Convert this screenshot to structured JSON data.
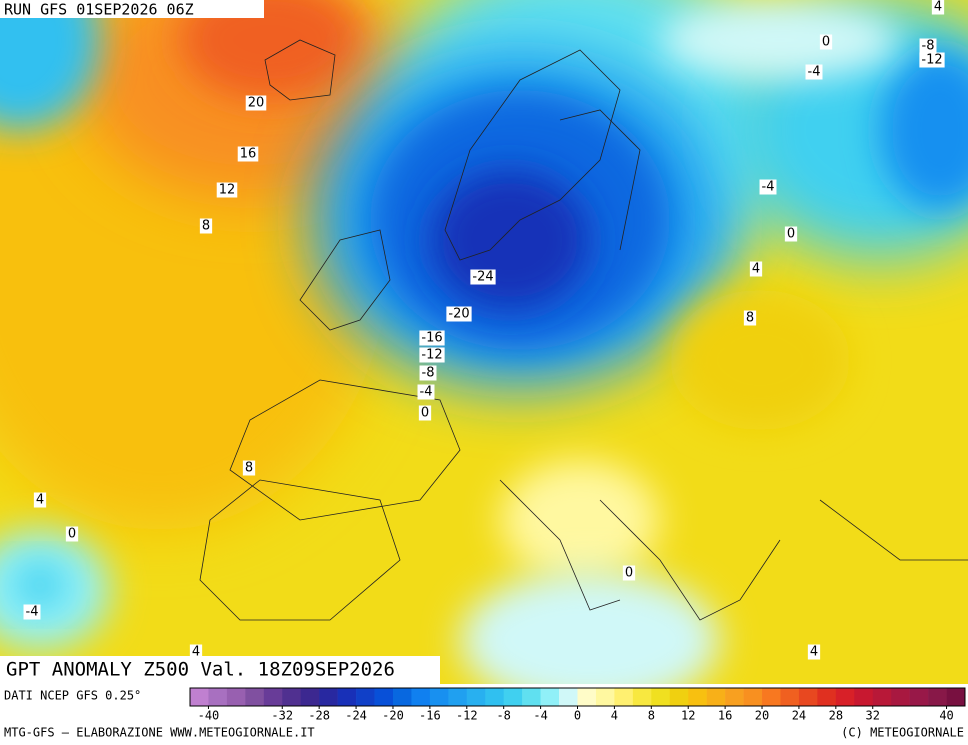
{
  "header": {
    "run": "RUN GFS 01SEP2026 06Z"
  },
  "title": "GPT ANOMALY Z500 Val. 18Z09SEP2026",
  "source": "DATI NCEP GFS 0.25°",
  "footer_left": "MTG-GFS — ELABORAZIONE WWW.METEOGIORNALE.IT",
  "footer_right": "(C) METEOGIORNALE",
  "colorbar": {
    "range": [
      -42,
      42
    ],
    "ticks": [
      -40,
      -32,
      -28,
      -24,
      -20,
      -16,
      -12,
      -8,
      -4,
      0,
      4,
      8,
      12,
      16,
      20,
      24,
      28,
      32,
      40
    ],
    "colors": [
      "#c080d0",
      "#a870c0",
      "#9860b0",
      "#8050a0",
      "#683c98",
      "#503090",
      "#3c2890",
      "#2828a0",
      "#1830b8",
      "#1040c8",
      "#0850d8",
      "#0868e0",
      "#1080f0",
      "#1890f0",
      "#20a0f0",
      "#28b0f0",
      "#30c0f0",
      "#40d0f0",
      "#60e0f0",
      "#90f0f8",
      "#d0f8f8",
      "#fffcc8",
      "#fff8a0",
      "#fff070",
      "#f8e840",
      "#f0e020",
      "#f0d010",
      "#f8c010",
      "#f8b018",
      "#f8a020",
      "#f89020",
      "#f87820",
      "#f06020",
      "#e84820",
      "#e03020",
      "#d82028",
      "#c81830",
      "#b81838",
      "#a81840",
      "#981848",
      "#881848",
      "#781040"
    ]
  },
  "contour_labels": [
    "4",
    "0",
    "-8",
    "-12",
    "-4",
    "20",
    "16",
    "12",
    "8",
    "-4",
    "0",
    "-24",
    "4",
    "-20",
    "8",
    "-16",
    "-12",
    "-8",
    "-4",
    "0",
    "8",
    "4",
    "0",
    "0",
    "-4",
    "4",
    "4"
  ]
}
